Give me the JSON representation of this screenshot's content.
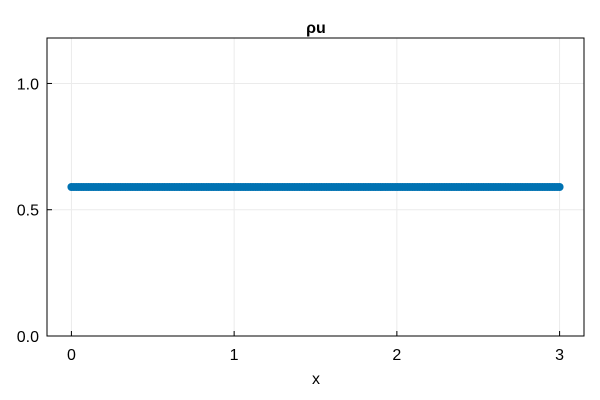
{
  "chart_data": {
    "type": "scatter",
    "title": "ρu",
    "xlabel": "x",
    "ylabel": "",
    "xlim": [
      -0.15,
      3.15
    ],
    "ylim": [
      0,
      1.18
    ],
    "xticks": [
      0,
      1,
      2,
      3
    ],
    "xtick_labels": [
      "0",
      "1",
      "2",
      "3"
    ],
    "yticks": [
      0.0,
      0.5,
      1.0
    ],
    "ytick_labels": [
      "0.0",
      "0.5",
      "1.0"
    ],
    "grid": true,
    "legend": "none",
    "series": [
      {
        "color": "#0072b2",
        "x_start": 0,
        "x_end": 3,
        "n_points": 200,
        "y_value": 0.59
      }
    ]
  },
  "colors": {
    "grid": "#ebebeb",
    "frame": "#000000",
    "marker": "#0072b2"
  }
}
